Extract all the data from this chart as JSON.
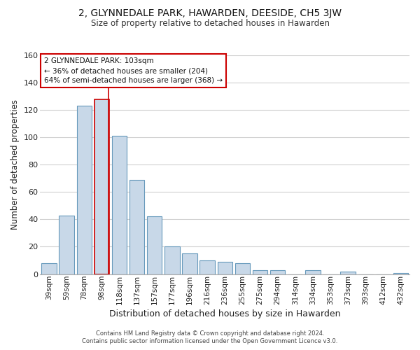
{
  "title": "2, GLYNNEDALE PARK, HAWARDEN, DEESIDE, CH5 3JW",
  "subtitle": "Size of property relative to detached houses in Hawarden",
  "xlabel": "Distribution of detached houses by size in Hawarden",
  "ylabel": "Number of detached properties",
  "bar_labels": [
    "39sqm",
    "59sqm",
    "78sqm",
    "98sqm",
    "118sqm",
    "137sqm",
    "157sqm",
    "177sqm",
    "196sqm",
    "216sqm",
    "236sqm",
    "255sqm",
    "275sqm",
    "294sqm",
    "314sqm",
    "334sqm",
    "353sqm",
    "373sqm",
    "393sqm",
    "412sqm",
    "432sqm"
  ],
  "bar_values": [
    8,
    43,
    123,
    128,
    101,
    69,
    42,
    20,
    15,
    10,
    9,
    8,
    3,
    3,
    0,
    3,
    0,
    2,
    0,
    0,
    1
  ],
  "bar_color": "#c8d8e8",
  "bar_edge_color": "#6699bb",
  "highlight_bar_index": 3,
  "highlight_bar_edge_color": "#cc0000",
  "vline_color": "#cc0000",
  "vline_x": 3.4,
  "ylim": [
    0,
    160
  ],
  "yticks": [
    0,
    20,
    40,
    60,
    80,
    100,
    120,
    140,
    160
  ],
  "annotation_title": "2 GLYNNEDALE PARK: 103sqm",
  "annotation_line1": "← 36% of detached houses are smaller (204)",
  "annotation_line2": "64% of semi-detached houses are larger (368) →",
  "annotation_box_color": "#ffffff",
  "annotation_box_edge_color": "#cc0000",
  "footer_line1": "Contains HM Land Registry data © Crown copyright and database right 2024.",
  "footer_line2": "Contains public sector information licensed under the Open Government Licence v3.0.",
  "background_color": "#ffffff",
  "grid_color": "#d0d0d0"
}
